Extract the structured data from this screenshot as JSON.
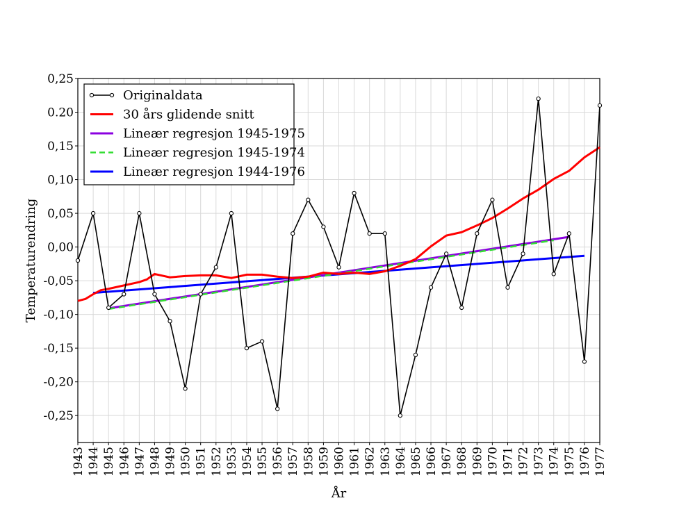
{
  "chart_data": {
    "type": "line",
    "xlabel": "År",
    "ylabel": "Temperaturendring",
    "xlim": [
      1943,
      1977
    ],
    "ylim": [
      -0.29,
      0.25
    ],
    "grid": true,
    "legend_placement": "top-left",
    "x_ticks": [
      "1943",
      "1944",
      "1945",
      "1946",
      "1947",
      "1948",
      "1949",
      "1950",
      "1951",
      "1952",
      "1953",
      "1954",
      "1955",
      "1956",
      "1957",
      "1958",
      "1959",
      "1960",
      "1961",
      "1962",
      "1963",
      "1964",
      "1965",
      "1966",
      "1967",
      "1968",
      "1969",
      "1970",
      "1971",
      "1972",
      "1973",
      "1974",
      "1975",
      "1976",
      "1977"
    ],
    "y_ticks": [
      {
        "value": 0.25,
        "label": "0,25"
      },
      {
        "value": 0.2,
        "label": "0.20"
      },
      {
        "value": 0.15,
        "label": "0,15"
      },
      {
        "value": 0.1,
        "label": "0,10"
      },
      {
        "value": 0.05,
        "label": "0,05"
      },
      {
        "value": 0.0,
        "label": "0,00"
      },
      {
        "value": -0.05,
        "label": "-0,05"
      },
      {
        "value": -0.1,
        "label": "-0,10"
      },
      {
        "value": -0.15,
        "label": "-0,15"
      },
      {
        "value": -0.2,
        "label": "-0,20"
      },
      {
        "value": -0.25,
        "label": "-0,25"
      }
    ],
    "series": [
      {
        "name": "Originaldata",
        "color": "#000000",
        "style": "solid-markers",
        "x": [
          1943,
          1944,
          1945,
          1946,
          1947,
          1948,
          1949,
          1950,
          1951,
          1952,
          1953,
          1954,
          1955,
          1956,
          1957,
          1958,
          1959,
          1960,
          1961,
          1962,
          1963,
          1964,
          1965,
          1966,
          1967,
          1968,
          1969,
          1970,
          1971,
          1972,
          1973,
          1974,
          1975,
          1976,
          1977
        ],
        "y": [
          -0.02,
          0.05,
          -0.09,
          -0.07,
          0.05,
          -0.07,
          -0.11,
          -0.21,
          -0.07,
          -0.03,
          0.05,
          -0.15,
          -0.14,
          -0.24,
          0.02,
          0.07,
          0.03,
          -0.03,
          0.08,
          0.02,
          0.02,
          -0.25,
          -0.16,
          -0.06,
          -0.01,
          -0.09,
          0.02,
          0.07,
          -0.06,
          -0.01,
          0.22,
          -0.04,
          0.02,
          -0.17,
          0.21
        ]
      },
      {
        "name": "30 års glidende snitt",
        "color": "#ff0000",
        "style": "solid",
        "x": [
          1943,
          1943.5,
          1944,
          1944.5,
          1945,
          1946,
          1947,
          1947.5,
          1948,
          1949,
          1950,
          1951,
          1952,
          1953,
          1954,
          1955,
          1956,
          1957,
          1958,
          1959,
          1960,
          1961,
          1962,
          1963,
          1964,
          1965,
          1966,
          1967,
          1968,
          1969,
          1970,
          1971,
          1972,
          1973,
          1974,
          1975,
          1976,
          1977
        ],
        "y": [
          -0.08,
          -0.077,
          -0.07,
          -0.064,
          -0.062,
          -0.057,
          -0.052,
          -0.048,
          -0.04,
          -0.045,
          -0.043,
          -0.042,
          -0.042,
          -0.046,
          -0.041,
          -0.041,
          -0.044,
          -0.046,
          -0.044,
          -0.038,
          -0.04,
          -0.038,
          -0.04,
          -0.036,
          -0.028,
          -0.018,
          0.001,
          0.017,
          0.022,
          0.032,
          0.043,
          0.057,
          0.072,
          0.085,
          0.101,
          0.113,
          0.133,
          0.148
        ]
      },
      {
        "name": "Lineær regresjon 1945-1975",
        "color": "#8b00e0",
        "style": "solid",
        "x": [
          1945,
          1975
        ],
        "y": [
          -0.091,
          0.015
        ]
      },
      {
        "name": "Lineær regresjon 1945-1974",
        "color": "#33dd33",
        "style": "dashed",
        "x": [
          1945,
          1974
        ],
        "y": [
          -0.092,
          0.01
        ]
      },
      {
        "name": "Lineær regresjon 1944-1976",
        "color": "#0000ff",
        "style": "solid",
        "x": [
          1944,
          1976
        ],
        "y": [
          -0.068,
          -0.013
        ]
      }
    ]
  }
}
